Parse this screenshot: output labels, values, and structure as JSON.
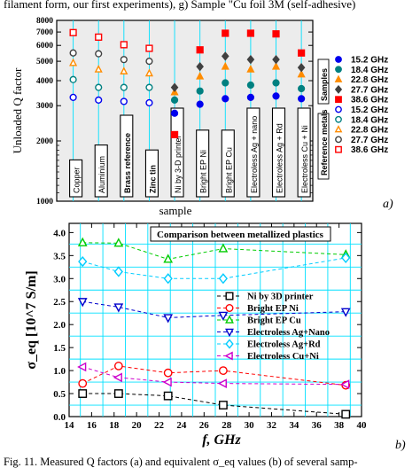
{
  "caption_top": "filament form, our first experiments), g) Sample \"Cu foil 3M (self-adhesive)",
  "caption_bottom": "Fig. 11. Measured Q factors (a) and equivalent σ_eq values (b) of several samp-",
  "panel_a_label": "a)",
  "panel_b_label": "b)",
  "chart_data": [
    {
      "type": "scatter",
      "ylabel": "Unloaded Q factor",
      "xlabel": "sample",
      "y_scale": "log",
      "ylim": [
        1000,
        8000
      ],
      "y_ticks": [
        1000,
        2000,
        3000,
        4000,
        5000,
        6000,
        7000,
        8000
      ],
      "categories": [
        "Copper",
        "Aluminium",
        "Brass reference",
        "Zinc tin",
        "Ni by 3-D printer",
        "Bright EP Ni",
        "Bright EP Cu",
        "Electroless Ag + nano",
        "Electroless Ag + Rd",
        "Electroless Cu + Ni"
      ],
      "reference_categories": [
        "Copper",
        "Aluminium",
        "Brass reference",
        "Zinc tin"
      ],
      "legend_groups": [
        "Samples",
        "Reference metals"
      ],
      "series": [
        {
          "name": "15.2 GHz",
          "group": "Samples",
          "marker": "circle",
          "filled": true,
          "color": "#0000ee",
          "values": [
            null,
            null,
            null,
            null,
            2750,
            3050,
            3250,
            3300,
            3350,
            3250
          ]
        },
        {
          "name": "18.4 GHz",
          "group": "Samples",
          "marker": "circle",
          "filled": true,
          "color": "#008080",
          "values": [
            null,
            null,
            null,
            null,
            3200,
            3550,
            3900,
            3800,
            3900,
            3650
          ]
        },
        {
          "name": "22.8 GHz",
          "group": "Samples",
          "marker": "triangle",
          "filled": true,
          "color": "#ff8c00",
          "values": [
            null,
            null,
            null,
            null,
            3500,
            4200,
            4700,
            4550,
            4700,
            4300
          ]
        },
        {
          "name": "27.7 GHz",
          "group": "Samples",
          "marker": "diamond",
          "filled": true,
          "color": "#404040",
          "values": [
            null,
            null,
            null,
            null,
            3700,
            4700,
            5300,
            5100,
            5100,
            4650
          ]
        },
        {
          "name": "38.6 GHz",
          "group": "Samples",
          "marker": "square",
          "filled": true,
          "color": "#ff0000",
          "values": [
            null,
            null,
            null,
            null,
            2150,
            5700,
            6900,
            6900,
            6850,
            5500
          ]
        },
        {
          "name": "15.2 GHz",
          "group": "Reference metals",
          "marker": "circle",
          "filled": false,
          "color": "#0000ee",
          "values": [
            3300,
            3200,
            3150,
            3100,
            null,
            null,
            null,
            null,
            null,
            null
          ]
        },
        {
          "name": "18.4 GHz",
          "group": "Reference metals",
          "marker": "circle",
          "filled": false,
          "color": "#008080",
          "values": [
            4050,
            3700,
            3700,
            3700,
            null,
            null,
            null,
            null,
            null,
            null
          ]
        },
        {
          "name": "22.8 GHz",
          "group": "Reference metals",
          "marker": "triangle",
          "filled": false,
          "color": "#ff8c00",
          "values": [
            4900,
            4550,
            4450,
            4350,
            null,
            null,
            null,
            null,
            null,
            null
          ]
        },
        {
          "name": "27.7 GHz",
          "group": "Reference metals",
          "marker": "circle",
          "filled": false,
          "color": "#404040",
          "values": [
            5500,
            5450,
            5100,
            5000,
            null,
            null,
            null,
            null,
            null,
            null
          ]
        },
        {
          "name": "38.6 GHz",
          "group": "Reference metals",
          "marker": "square",
          "filled": false,
          "color": "#ff0000",
          "values": [
            6950,
            6600,
            6050,
            5800,
            null,
            null,
            null,
            null,
            null,
            null
          ]
        }
      ]
    },
    {
      "type": "line",
      "title": "Comparison between metallized plastics",
      "xlabel": "f, GHz",
      "ylabel": "σ_eq [10^7 S/m]",
      "xlim": [
        14,
        40
      ],
      "ylim": [
        0,
        4.2
      ],
      "x_ticks": [
        14,
        16,
        18,
        20,
        22,
        24,
        26,
        28,
        30,
        32,
        34,
        36,
        38,
        40
      ],
      "y_ticks": [
        0.0,
        0.5,
        1.0,
        1.5,
        2.0,
        2.5,
        3.0,
        3.5,
        4.0
      ],
      "x": [
        15.2,
        18.4,
        22.8,
        27.7,
        38.6
      ],
      "legend_position": "right-center",
      "series": [
        {
          "name": "Ni by 3D printer",
          "marker": "square",
          "color": "#000000",
          "values": [
            0.5,
            0.5,
            0.45,
            0.25,
            0.05
          ]
        },
        {
          "name": "Bright EP Ni",
          "marker": "circle",
          "color": "#ff0000",
          "values": [
            0.72,
            1.1,
            0.95,
            1.0,
            0.68
          ]
        },
        {
          "name": "Bright EP Cu",
          "marker": "triangle",
          "color": "#00cc00",
          "values": [
            3.78,
            3.77,
            3.42,
            3.65,
            3.52
          ]
        },
        {
          "name": "Electroless Ag+Nano",
          "marker": "triangle-down",
          "color": "#0000cc",
          "values": [
            2.5,
            2.38,
            2.15,
            2.2,
            2.28
          ]
        },
        {
          "name": "Electroless Ag+Rd",
          "marker": "diamond",
          "color": "#00ccff",
          "values": [
            3.37,
            3.15,
            3.0,
            3.0,
            3.45
          ]
        },
        {
          "name": "Electroless Cu+Ni",
          "marker": "triangle-left",
          "color": "#cc00cc",
          "values": [
            1.08,
            0.85,
            0.75,
            0.72,
            0.7
          ]
        }
      ]
    }
  ]
}
